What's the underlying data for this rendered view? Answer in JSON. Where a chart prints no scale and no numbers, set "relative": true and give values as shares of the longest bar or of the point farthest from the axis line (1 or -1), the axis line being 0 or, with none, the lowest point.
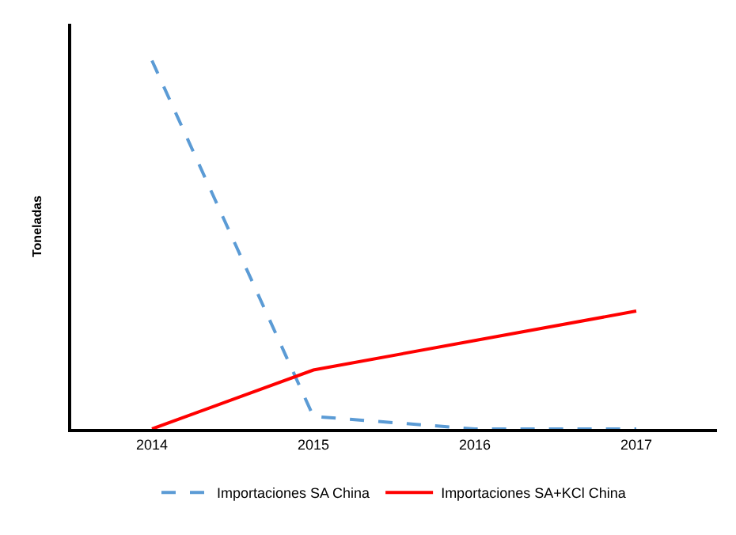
{
  "chart_data": {
    "type": "line",
    "relative": true,
    "ylabel": "Toneladas",
    "categories": [
      "2014",
      "2015",
      "2016",
      "2017"
    ],
    "series": [
      {
        "name": "Importaciones SA China",
        "color": "#5b9bd5",
        "line_style": "dashed",
        "values": [
          1,
          0.034,
          0,
          0
        ]
      },
      {
        "name": "Importaciones SA+KCl China",
        "color": "#ff0000",
        "line_style": "solid",
        "values": [
          0,
          0.16,
          0.24,
          0.32
        ]
      }
    ],
    "legend": "bottom",
    "marker": "none"
  }
}
